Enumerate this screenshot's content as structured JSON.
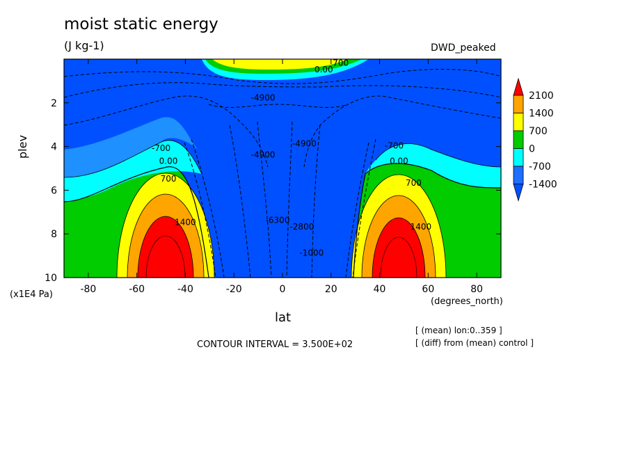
{
  "header": {
    "title": "moist static energy",
    "units": "(J kg-1)",
    "experiment": "DWD_peaked"
  },
  "footer": {
    "contour_interval": "CONTOUR INTERVAL = 3.500E+02",
    "note_lon": "[ (mean) lon:0..359 ]",
    "note_diff": "[ (diff) from (mean) control ]"
  },
  "chart_data": {
    "type": "heatmap",
    "title": "moist static energy",
    "subtitle": "(J kg-1)",
    "xlabel": "lat",
    "xunit": "(degrees_north)",
    "ylabel": "plev",
    "yunit": "(x1E4 Pa)",
    "xlim": [
      -90,
      90
    ],
    "ylim": [
      10,
      0
    ],
    "x_ticks": [
      -80,
      -60,
      -40,
      -20,
      0,
      20,
      40,
      60,
      80
    ],
    "y_ticks": [
      2,
      4,
      6,
      8,
      10
    ],
    "colorbar": {
      "labels": [
        "2100",
        "1400",
        "700",
        "0",
        "-700",
        "-1400"
      ],
      "levels": [
        2100,
        1400,
        700,
        0,
        -700,
        -1400
      ],
      "colors": [
        "#ff0000",
        "#ffa500",
        "#ffff00",
        "#00cc00",
        "#00ffff",
        "#1e6eff",
        "#0050ff"
      ],
      "extend": "both"
    },
    "contour_labels": [
      {
        "text": "-4900",
        "lat": -8,
        "plev": 1.9
      },
      {
        "text": "-4900",
        "lat": -8,
        "plev": 4.5
      },
      {
        "text": "-4900",
        "lat": 9,
        "plev": 4.0
      },
      {
        "text": "0.00",
        "lat": -47,
        "plev": 4.8
      },
      {
        "text": "0.00",
        "lat": 48,
        "plev": 4.8
      },
      {
        "text": "700",
        "lat": -47,
        "plev": 5.6
      },
      {
        "text": "700",
        "lat": 54,
        "plev": 5.8
      },
      {
        "text": "1400",
        "lat": -40,
        "plev": 7.6
      },
      {
        "text": "1400",
        "lat": 57,
        "plev": 7.8
      },
      {
        "text": "-700",
        "lat": -50,
        "plev": 4.2
      },
      {
        "text": "-700",
        "lat": 46,
        "plev": 4.1
      },
      {
        "text": "700",
        "lat": 24,
        "plev": 0.3
      },
      {
        "text": "0.00",
        "lat": 17,
        "plev": 0.6
      },
      {
        "text": "-6300",
        "lat": -2,
        "plev": 7.5
      },
      {
        "text": "-2800",
        "lat": 8,
        "plev": 7.8
      },
      {
        "text": "-1000",
        "lat": 12,
        "plev": 9.0
      }
    ]
  }
}
